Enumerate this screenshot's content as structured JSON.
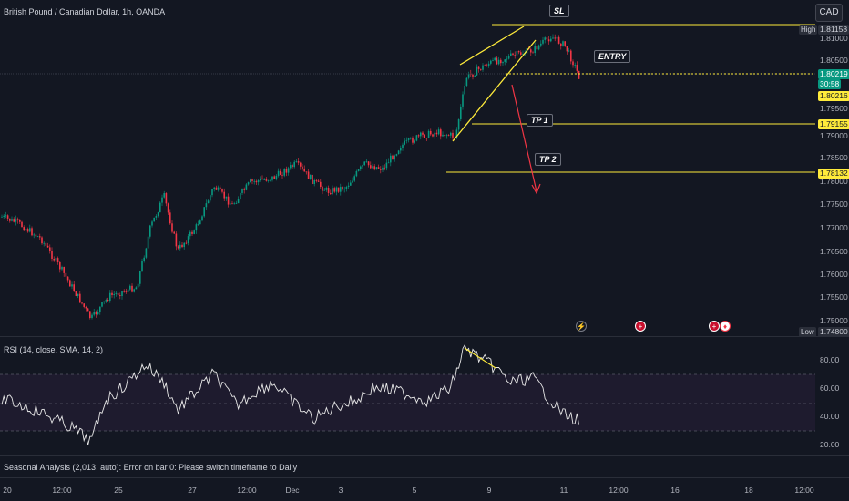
{
  "header": {
    "title": "British Pound / Canadian Dollar, 1h, OANDA",
    "currency_button": "CAD"
  },
  "price_axis": {
    "ticks": [
      "1.81000",
      "1.80500",
      "1.79500",
      "1.79000",
      "1.78500",
      "1.78000",
      "1.77500",
      "1.77000",
      "1.76500",
      "1.76000",
      "1.75500",
      "1.75000"
    ],
    "high_label": "High",
    "high_value": "1.81158",
    "current_value": "1.80219",
    "countdown": "30:58",
    "entry_value": "1.80216",
    "tp1_value": "1.79155",
    "tp2_value": "1.78132",
    "low_label": "Low",
    "low_value": "1.74800"
  },
  "annotations": {
    "sl": "SL",
    "entry": "ENTRY",
    "tp1": "TP 1",
    "tp2": "TP 2"
  },
  "rsi": {
    "title": "RSI (14, close, SMA, 14, 2)",
    "ticks": [
      "80.00",
      "60.00",
      "40.00",
      "20.00"
    ]
  },
  "seasonal": {
    "text": "Seasonal Analysis (2,013, auto): Error on bar 0: Please switch timeframe to Daily"
  },
  "time_axis": [
    "20",
    "12:00",
    "25",
    "27",
    "12:00",
    "Dec",
    "3",
    "5",
    "9",
    "11",
    "12:00",
    "16",
    "18",
    "12:00"
  ],
  "colors": {
    "up": "#089981",
    "down": "#f23645",
    "levels": "#ffeb3b",
    "rsi_line": "#e8e8e8",
    "background": "#131722"
  },
  "event_icons": [
    "lightning-icon",
    "uk-flag-icon",
    "uk-flag-icon",
    "ca-flag-icon"
  ]
}
